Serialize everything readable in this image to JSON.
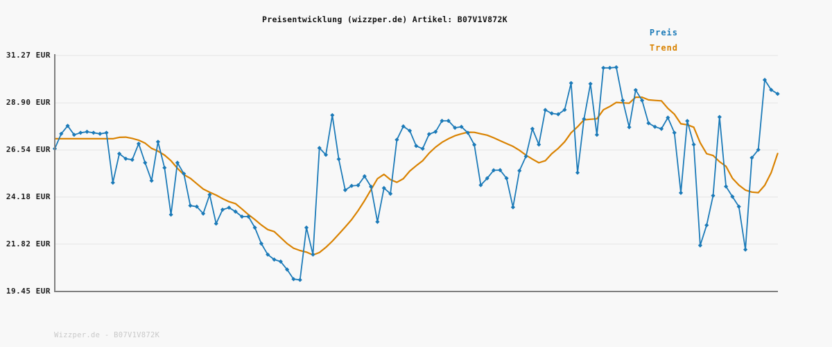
{
  "title": "Preisentwicklung (wizzper.de) Artikel: B07V1V872K",
  "footer": "Wizzper.de - B07V1V872K",
  "colors": {
    "preis": "#1b7ab8",
    "trend": "#d98200",
    "axis": "#7f7f7f",
    "grid": "#e4e4e4",
    "background": "#f8f8f8",
    "label_text": "#1a1a1a",
    "footer_text": "#c9c9c9"
  },
  "legend": [
    {
      "label": "Preis",
      "color": "#1b7ab8"
    },
    {
      "label": "Trend",
      "color": "#d98200"
    }
  ],
  "y_axis": {
    "unit": "EUR",
    "tick_labels": [
      "31.27 EUR",
      "28.90 EUR",
      "26.54 EUR",
      "24.18 EUR",
      "21.82 EUR",
      "19.45 EUR"
    ],
    "tick_values": [
      31.27,
      28.9,
      26.54,
      24.18,
      21.82,
      19.45
    ]
  },
  "chart_data": {
    "type": "line",
    "title": "Preisentwicklung (wizzper.de) Artikel: B07V1V872K",
    "xlabel": "",
    "ylabel": "EUR",
    "ylim": [
      19.45,
      31.27
    ],
    "grid": true,
    "legend_position": "top-right",
    "x_tick_labels": [],
    "series": [
      {
        "name": "Preis",
        "color": "#1b7ab8",
        "marker": "diamond",
        "line_width": 1.8,
        "values": [
          26.6,
          27.35,
          27.75,
          27.3,
          27.4,
          27.45,
          27.4,
          27.35,
          27.4,
          24.9,
          26.35,
          26.1,
          26.05,
          26.85,
          25.9,
          25.0,
          26.95,
          25.65,
          23.3,
          25.9,
          25.35,
          23.75,
          23.7,
          23.35,
          24.3,
          22.85,
          23.55,
          23.65,
          23.45,
          23.2,
          23.2,
          22.65,
          21.85,
          21.3,
          21.05,
          20.95,
          20.55,
          20.07,
          20.03,
          22.65,
          21.3,
          26.64,
          26.3,
          28.28,
          26.08,
          24.53,
          24.74,
          24.77,
          25.22,
          24.7,
          22.94,
          24.63,
          24.35,
          27.05,
          27.72,
          27.5,
          26.74,
          26.6,
          27.33,
          27.45,
          28.0,
          28.0,
          27.65,
          27.7,
          27.4,
          26.8,
          24.78,
          25.12,
          25.52,
          25.53,
          25.12,
          23.67,
          25.5,
          26.22,
          27.6,
          26.81,
          28.54,
          28.37,
          28.33,
          28.55,
          29.89,
          25.4,
          28.09,
          29.85,
          27.3,
          30.65,
          30.65,
          30.68,
          29.02,
          27.68,
          29.54,
          29.02,
          27.88,
          27.7,
          27.6,
          28.16,
          27.4,
          24.39,
          27.99,
          26.81,
          21.76,
          22.77,
          24.25,
          28.19,
          24.71,
          24.2,
          23.7,
          21.55,
          26.15,
          26.55,
          30.05,
          29.55,
          29.35
        ]
      },
      {
        "name": "Trend",
        "color": "#d98200",
        "marker": "none",
        "line_width": 2.2,
        "values": [
          27.1,
          27.1,
          27.1,
          27.1,
          27.1,
          27.1,
          27.1,
          27.1,
          27.1,
          27.1,
          27.17,
          27.18,
          27.12,
          27.03,
          26.88,
          26.62,
          26.48,
          26.28,
          26.0,
          25.62,
          25.3,
          25.12,
          24.85,
          24.58,
          24.42,
          24.28,
          24.1,
          23.95,
          23.85,
          23.58,
          23.3,
          23.05,
          22.78,
          22.55,
          22.45,
          22.15,
          21.85,
          21.62,
          21.5,
          21.42,
          21.28,
          21.4,
          21.66,
          21.97,
          22.32,
          22.68,
          23.05,
          23.5,
          24.0,
          24.55,
          25.1,
          25.32,
          25.05,
          24.92,
          25.1,
          25.48,
          25.75,
          26.0,
          26.38,
          26.68,
          26.92,
          27.1,
          27.25,
          27.35,
          27.43,
          27.42,
          27.35,
          27.28,
          27.15,
          27.0,
          26.86,
          26.72,
          26.52,
          26.28,
          26.08,
          25.9,
          26.0,
          26.35,
          26.62,
          26.95,
          27.4,
          27.7,
          28.05,
          28.08,
          28.1,
          28.55,
          28.72,
          28.92,
          28.9,
          28.88,
          29.18,
          29.18,
          29.05,
          29.02,
          29.0,
          28.62,
          28.33,
          27.85,
          27.8,
          27.68,
          26.9,
          26.35,
          26.26,
          25.95,
          25.72,
          25.12,
          24.78,
          24.53,
          24.43,
          24.4,
          24.77,
          25.4,
          26.36
        ]
      }
    ]
  }
}
